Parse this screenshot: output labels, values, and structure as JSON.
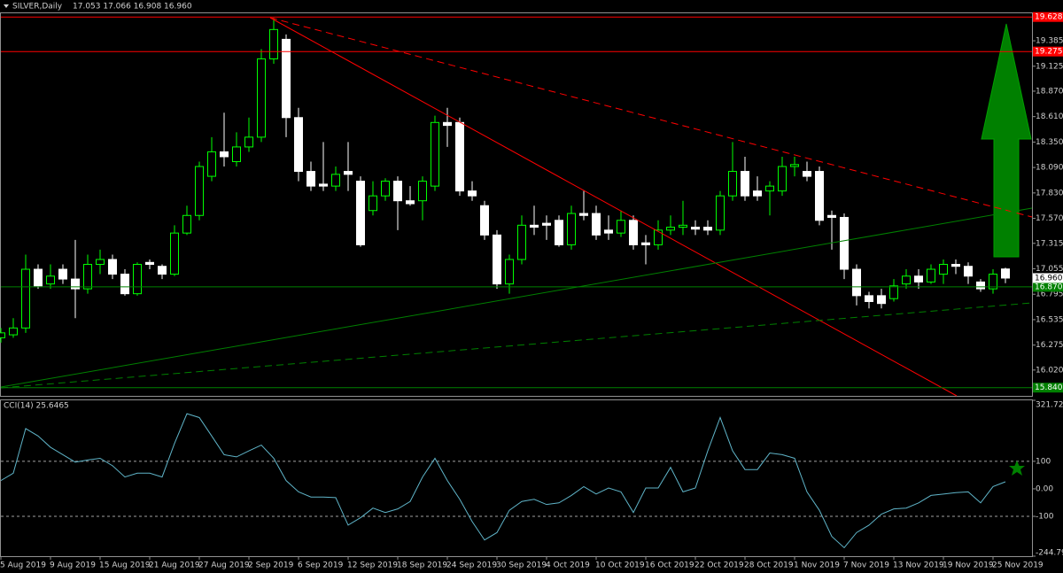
{
  "chart_data": [
    {
      "type": "candlestick",
      "title": "SILVER,Daily",
      "ohlc_text": "17.053 17.066 16.908 16.960",
      "last_price_label": "16.960",
      "categories": [
        "5 Aug 2019",
        null,
        null,
        null,
        "9 Aug 2019",
        null,
        null,
        null,
        "15 Aug 2019",
        null,
        null,
        null,
        "21 Aug 2019",
        null,
        null,
        null,
        "27 Aug 2019",
        null,
        null,
        null,
        "2 Sep 2019",
        null,
        null,
        null,
        "6 Sep 2019",
        null,
        null,
        null,
        "12 Sep 2019",
        null,
        null,
        null,
        "18 Sep 2019",
        null,
        null,
        null,
        "24 Sep 2019",
        null,
        null,
        null,
        "30 Sep 2019",
        null,
        null,
        null,
        "4 Oct 2019",
        null,
        null,
        null,
        "10 Oct 2019",
        null,
        null,
        null,
        "16 Oct 2019",
        null,
        null,
        null,
        "22 Oct 2019",
        null,
        null,
        null,
        "28 Oct 2019",
        null,
        null,
        null,
        "1 Nov 2019",
        null,
        null,
        null,
        "7 Nov 2019",
        null,
        null,
        null,
        "13 Nov 2019",
        null,
        null,
        null,
        "19 Nov 2019",
        null,
        null,
        null,
        "25 Nov 2019",
        null
      ],
      "open": [
        16.35,
        16.38,
        16.45,
        17.05,
        16.9,
        17.05,
        16.95,
        16.85,
        17.1,
        17.15,
        17.0,
        16.8,
        17.12,
        17.08,
        17.0,
        17.42,
        17.6,
        18.0,
        18.25,
        18.15,
        18.3,
        18.4,
        19.2,
        19.4,
        18.6,
        18.05,
        17.92,
        17.9,
        18.05,
        17.95,
        17.65,
        17.8,
        17.95,
        17.75,
        17.75,
        17.9,
        18.55,
        18.55,
        17.85,
        17.7,
        17.4,
        16.9,
        17.15,
        17.5,
        17.52,
        17.55,
        17.3,
        17.62,
        17.62,
        17.45,
        17.42,
        17.55,
        17.32,
        17.3,
        17.45,
        17.48,
        17.48,
        17.48,
        17.45,
        17.8,
        18.05,
        17.85,
        17.85,
        17.85,
        18.1,
        18.05,
        18.05,
        17.6,
        17.58,
        17.05,
        16.78,
        16.78,
        16.75,
        16.9,
        16.98,
        16.92,
        17.0,
        17.1,
        17.08,
        16.92,
        16.85,
        17.053
      ],
      "high": [
        16.45,
        16.55,
        17.2,
        17.1,
        17.1,
        17.1,
        17.35,
        17.2,
        17.25,
        17.2,
        17.05,
        17.12,
        17.15,
        17.1,
        17.5,
        17.7,
        18.15,
        18.4,
        18.65,
        18.45,
        18.6,
        19.3,
        19.62,
        19.45,
        18.7,
        18.15,
        18.35,
        18.1,
        18.35,
        18.0,
        17.95,
        17.98,
        18.0,
        17.9,
        18.0,
        18.62,
        18.7,
        18.6,
        17.95,
        17.75,
        17.45,
        17.2,
        17.6,
        17.7,
        17.6,
        17.6,
        17.7,
        17.85,
        17.7,
        17.6,
        17.65,
        17.6,
        17.4,
        17.55,
        17.6,
        17.75,
        17.55,
        17.55,
        17.85,
        18.35,
        18.2,
        18.0,
        17.95,
        18.2,
        18.2,
        18.15,
        18.1,
        17.65,
        17.62,
        17.1,
        16.82,
        16.85,
        16.95,
        17.05,
        17.05,
        17.1,
        17.15,
        17.15,
        17.12,
        16.95,
        17.05,
        17.066
      ],
      "low": [
        16.3,
        16.35,
        16.4,
        16.85,
        16.85,
        16.9,
        16.55,
        16.8,
        17.0,
        16.95,
        16.78,
        16.78,
        17.05,
        16.95,
        16.98,
        17.4,
        17.55,
        17.95,
        18.1,
        18.1,
        18.25,
        18.35,
        19.15,
        18.4,
        17.95,
        17.85,
        17.85,
        17.85,
        17.85,
        17.28,
        17.6,
        17.75,
        17.45,
        17.7,
        17.55,
        17.85,
        18.3,
        17.8,
        17.75,
        17.35,
        16.85,
        16.8,
        17.1,
        17.4,
        17.35,
        17.28,
        17.25,
        17.55,
        17.35,
        17.35,
        17.38,
        17.25,
        17.1,
        17.25,
        17.4,
        17.4,
        17.4,
        17.4,
        17.4,
        17.75,
        17.75,
        17.75,
        17.6,
        17.8,
        18.0,
        17.95,
        17.5,
        17.25,
        16.95,
        16.68,
        16.65,
        16.65,
        16.72,
        16.85,
        16.85,
        16.9,
        16.9,
        17.0,
        16.9,
        16.82,
        16.8,
        16.908
      ],
      "close": [
        16.4,
        16.45,
        17.05,
        16.88,
        16.98,
        16.95,
        16.85,
        17.1,
        17.15,
        17.0,
        16.8,
        17.1,
        17.1,
        17.0,
        17.42,
        17.6,
        18.1,
        18.25,
        18.2,
        18.3,
        18.4,
        19.2,
        19.5,
        18.6,
        18.05,
        17.9,
        17.9,
        18.02,
        18.02,
        17.3,
        17.8,
        17.95,
        17.75,
        17.72,
        17.95,
        18.55,
        18.52,
        17.85,
        17.8,
        17.4,
        16.9,
        17.15,
        17.5,
        17.48,
        17.5,
        17.3,
        17.62,
        17.6,
        17.4,
        17.42,
        17.55,
        17.3,
        17.3,
        17.45,
        17.48,
        17.5,
        17.46,
        17.45,
        17.8,
        18.05,
        17.8,
        17.8,
        17.9,
        18.1,
        18.12,
        18.0,
        17.55,
        17.58,
        17.05,
        16.78,
        16.72,
        16.7,
        16.88,
        16.98,
        16.92,
        17.05,
        17.1,
        17.08,
        16.98,
        16.85,
        17.0,
        16.96
      ],
      "up_color": "#00ff00",
      "down_color": "#ffffff",
      "ylim": [
        15.756,
        19.666
      ],
      "yticks": [
        19.385,
        19.125,
        {
          "value": 18.87,
          "label": "18.870"
        },
        {
          "value": 18.61,
          "label": "18.610"
        },
        {
          "value": 18.35,
          "label": "18.350"
        },
        {
          "value": 18.09,
          "label": "18.090"
        },
        {
          "value": 17.83,
          "label": "17.830"
        },
        {
          "value": 17.57,
          "label": "17.570"
        },
        17.315,
        17.055,
        16.795,
        16.535,
        16.275,
        {
          "value": 16.02,
          "label": "16.020"
        }
      ],
      "hlines": [
        {
          "value": 19.628,
          "label": "19.628",
          "color": "#ff0000"
        },
        {
          "value": 19.275,
          "label": "19.275",
          "color": "#ff0000"
        },
        {
          "value": 16.87,
          "label": "16.870",
          "color": "#008000"
        },
        {
          "value": 15.84,
          "label": "15.840",
          "color": "#008000"
        }
      ]
    },
    {
      "type": "line",
      "title": "CCI(14) 25.6465",
      "color": "#5fb4c8",
      "values": [
        30,
        57,
        219,
        192,
        151,
        124,
        97,
        105,
        111,
        84,
        43,
        57,
        57,
        43,
        165,
        273,
        259,
        192,
        124,
        116,
        138,
        159,
        111,
        30,
        -11,
        -30,
        -30,
        -32,
        -132,
        -105,
        -70,
        -86,
        -73,
        -46,
        43,
        111,
        30,
        -38,
        -119,
        -186,
        -159,
        -78,
        -46,
        -38,
        -57,
        -51,
        -24,
        8,
        -19,
        3,
        -11,
        -86,
        3,
        3,
        78,
        -11,
        3,
        138,
        259,
        138,
        70,
        70,
        130,
        124,
        111,
        -11,
        -78,
        -173,
        -214,
        -159,
        -132,
        -92,
        -73,
        -70,
        -51,
        -24,
        -19,
        -14,
        -11,
        -51,
        8,
        25.6465
      ],
      "ylim": [
        -244.792,
        321.7277
      ],
      "yticks": [
        321.7277,
        100,
        {
          "value": 0,
          "label": "0.00"
        },
        -100,
        -244.792
      ],
      "levels": [
        100,
        -100
      ]
    }
  ]
}
